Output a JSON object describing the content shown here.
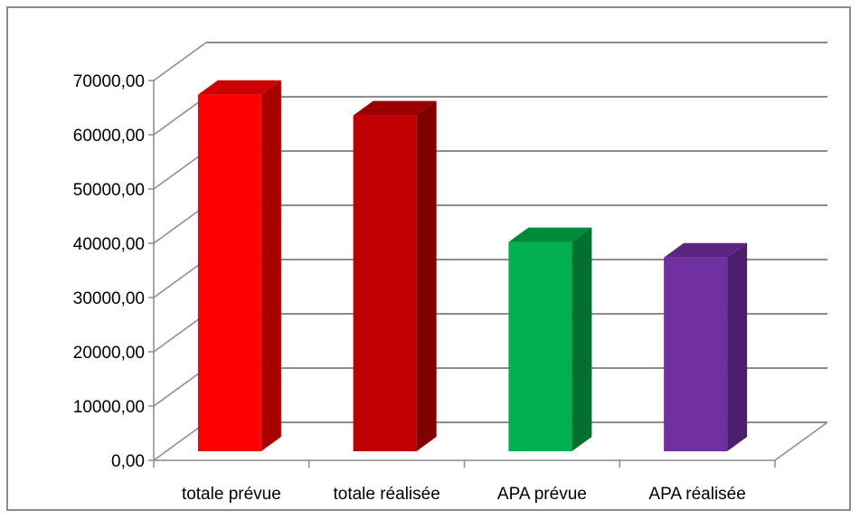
{
  "chart_data": {
    "type": "bar",
    "style": "3d-column",
    "categories": [
      "totale prévue",
      "totale réalisée",
      "APA prévue",
      "APA réalisée"
    ],
    "values": [
      69000,
      65000,
      40500,
      37500
    ],
    "colors": {
      "front": [
        "#ff0000",
        "#c00000",
        "#00b050",
        "#7030a0"
      ],
      "side": [
        "#a80000",
        "#800000",
        "#007030",
        "#4a1f6b"
      ],
      "top": [
        "#cc0000",
        "#9a0000",
        "#008a3c",
        "#5a2682"
      ]
    },
    "ylim": [
      0,
      70000
    ],
    "yticks": [
      "0,00",
      "10000,00",
      "20000,00",
      "30000,00",
      "40000,00",
      "50000,00",
      "60000,00",
      "70000,00"
    ],
    "grid": true,
    "legend": "none"
  }
}
